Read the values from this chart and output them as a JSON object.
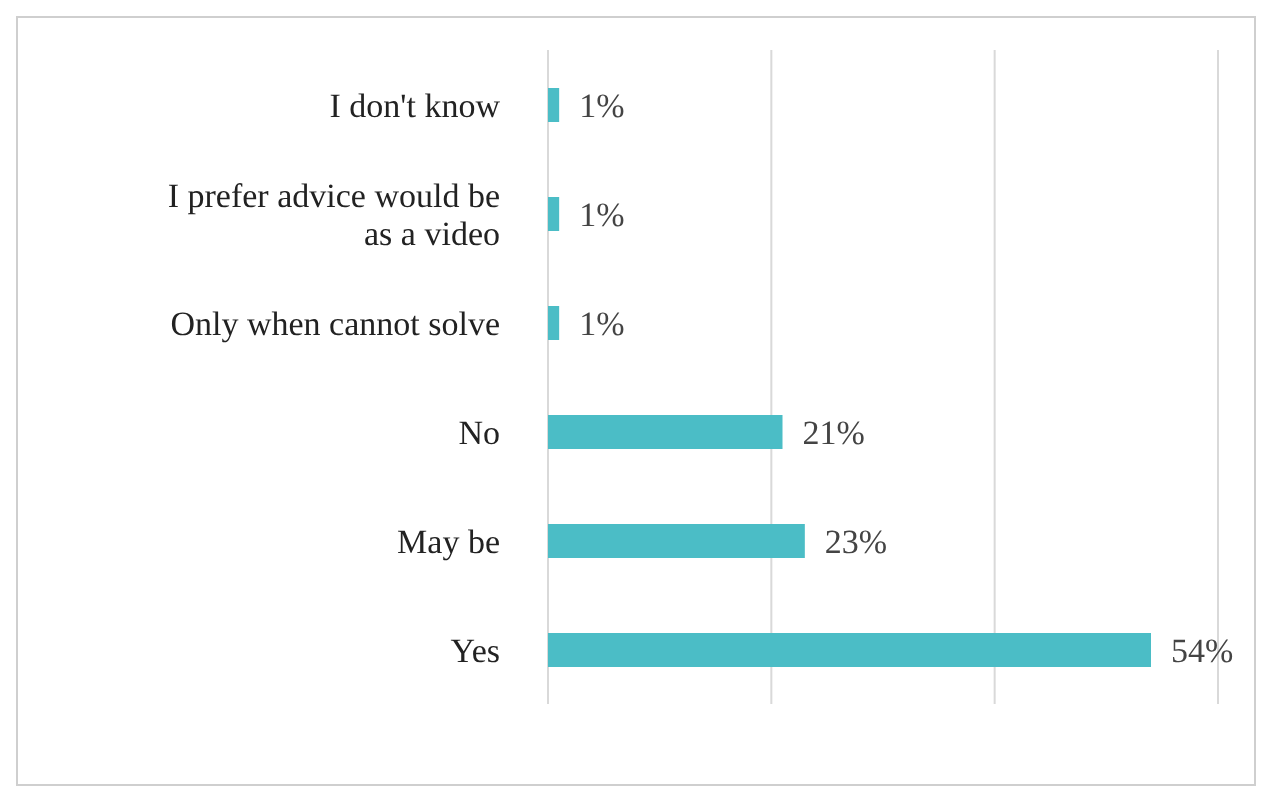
{
  "chart_data": {
    "type": "bar",
    "orientation": "horizontal",
    "categories": [
      "I don't know",
      "I prefer advice would be as a video",
      "Only when cannot solve",
      "No",
      "May be",
      "Yes"
    ],
    "values": [
      1,
      1,
      1,
      21,
      23,
      54
    ],
    "value_labels": [
      "1%",
      "1%",
      "1%",
      "21%",
      "23%",
      "54%"
    ],
    "color": "#4bbdc6",
    "xlim": [
      0,
      60
    ],
    "xticks": [
      {
        "value": 0,
        "label": null
      },
      {
        "value": 20,
        "label": null
      },
      {
        "value": 40,
        "label": null
      },
      {
        "value": 60,
        "label": null
      }
    ],
    "tick_labels": "y",
    "grid": "x"
  }
}
